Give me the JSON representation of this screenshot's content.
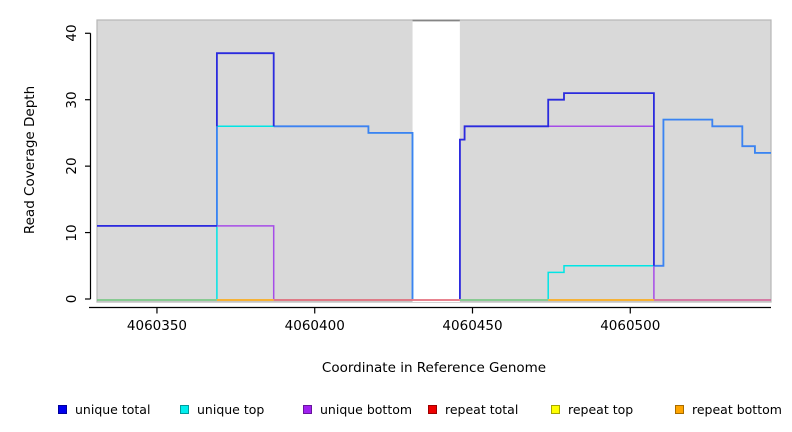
{
  "chart_data": {
    "type": "line",
    "subtype": "step",
    "title": "",
    "xlabel": "Coordinate in Reference Genome",
    "ylabel": "Read Coverage Depth",
    "xlim": [
      4060331,
      4060544.6
    ],
    "ylim": [
      0,
      42.4
    ],
    "xticks": [
      4060350,
      4060400,
      4060450,
      4060500
    ],
    "yticks": [
      0,
      10,
      20,
      30,
      40
    ],
    "grid": false,
    "panel_bg": "#d9d9d9",
    "panel_border": "#b6b6b6",
    "axis_color": "#000000",
    "gap_band": {
      "x0": 4060431,
      "x1": 4060446,
      "fill": "#ffffff",
      "top_border": "#858585"
    },
    "zero_line_segments": [
      {
        "x0": 4060331,
        "x1": 4060369,
        "color": "#6ec57a",
        "note": "unique top at 0 over repeat lines (green blend)"
      },
      {
        "x0": 4060369,
        "x1": 4060387,
        "color": "#ffa500",
        "note": "repeat bottom visible"
      },
      {
        "x0": 4060387,
        "x1": 4060446,
        "color": "#e15a6a",
        "note": "unique bottom at 0 over repeats (pink blend)"
      },
      {
        "x0": 4060446,
        "x1": 4060474,
        "color": "#6ec57a",
        "note": "unique top at 0 (green blend)"
      },
      {
        "x0": 4060474,
        "x1": 4060507.5,
        "color": "#ffa500",
        "note": "repeat bottom visible"
      },
      {
        "x0": 4060507.5,
        "x1": 4060544.6,
        "color": "#d45b92",
        "note": "unique bottom at 0 over repeats (pink blend)"
      }
    ],
    "series": [
      {
        "name": "unique top",
        "color": "#00e5e5",
        "width": 1.5,
        "segments": [
          [
            [
              4060369,
              0
            ],
            [
              4060369,
              26
            ],
            [
              4060417,
              26
            ],
            [
              4060417,
              25
            ],
            [
              4060431,
              25
            ],
            [
              4060431,
              0
            ]
          ],
          [
            [
              4060474,
              0
            ],
            [
              4060474,
              4
            ],
            [
              4060479,
              4
            ],
            [
              4060479,
              5
            ],
            [
              4060510.5,
              5
            ],
            [
              4060510.5,
              27
            ],
            [
              4060526,
              27
            ],
            [
              4060526,
              26
            ],
            [
              4060535.5,
              26
            ],
            [
              4060535.5,
              23
            ],
            [
              4060539.5,
              23
            ],
            [
              4060539.5,
              22
            ],
            [
              4060544.6,
              22
            ]
          ]
        ]
      },
      {
        "name": "unique bottom",
        "color": "#a64ce8",
        "width": 1.5,
        "segments": [
          [
            [
              4060331,
              11
            ],
            [
              4060387,
              11
            ],
            [
              4060387,
              0
            ]
          ],
          [
            [
              4060446,
              0
            ],
            [
              4060446,
              24
            ],
            [
              4060447.5,
              24
            ],
            [
              4060447.5,
              26
            ],
            [
              4060507.5,
              26
            ],
            [
              4060507.5,
              0
            ]
          ]
        ]
      },
      {
        "name": "unique total",
        "tone": "royal-blend-over-cyan",
        "color": "#3c82f2",
        "width": 1.8,
        "segments": [
          [
            [
              4060369,
              11
            ],
            [
              4060369,
              26
            ]
          ],
          [
            [
              4060387,
              26
            ],
            [
              4060417,
              26
            ],
            [
              4060417,
              25
            ],
            [
              4060431,
              25
            ],
            [
              4060431,
              0
            ]
          ],
          [
            [
              4060507.5,
              5
            ],
            [
              4060510.5,
              5
            ],
            [
              4060510.5,
              27
            ],
            [
              4060526,
              27
            ],
            [
              4060526,
              26
            ],
            [
              4060535.5,
              26
            ],
            [
              4060535.5,
              23
            ],
            [
              4060539.5,
              23
            ],
            [
              4060539.5,
              22
            ],
            [
              4060544.6,
              22
            ]
          ]
        ]
      },
      {
        "name": "unique total",
        "tone": "dark",
        "color": "#2b2bde",
        "width": 1.8,
        "segments": [
          [
            [
              4060331,
              11
            ],
            [
              4060369,
              11
            ]
          ],
          [
            [
              4060369,
              26
            ],
            [
              4060369,
              37
            ],
            [
              4060387,
              37
            ],
            [
              4060387,
              26
            ]
          ],
          [
            [
              4060446,
              0
            ],
            [
              4060446,
              24
            ],
            [
              4060447.5,
              24
            ],
            [
              4060447.5,
              26
            ],
            [
              4060474,
              26
            ],
            [
              4060474,
              30
            ],
            [
              4060479,
              30
            ],
            [
              4060479,
              31
            ],
            [
              4060507.5,
              31
            ],
            [
              4060507.5,
              5
            ]
          ]
        ]
      }
    ],
    "repeat_series_note": "repeat total / repeat top / repeat bottom are 0 across the whole range (rendered as zero_line_segments blends)",
    "legend": [
      {
        "label": "unique total",
        "color": "#0000ee"
      },
      {
        "label": "unique top",
        "color": "#00eeee"
      },
      {
        "label": "unique bottom",
        "color": "#a020f0"
      },
      {
        "label": "repeat total",
        "color": "#ee0000"
      },
      {
        "label": "repeat top",
        "color": "#ffff00"
      },
      {
        "label": "repeat bottom",
        "color": "#ffa500"
      }
    ],
    "legend_position": "bottom"
  }
}
